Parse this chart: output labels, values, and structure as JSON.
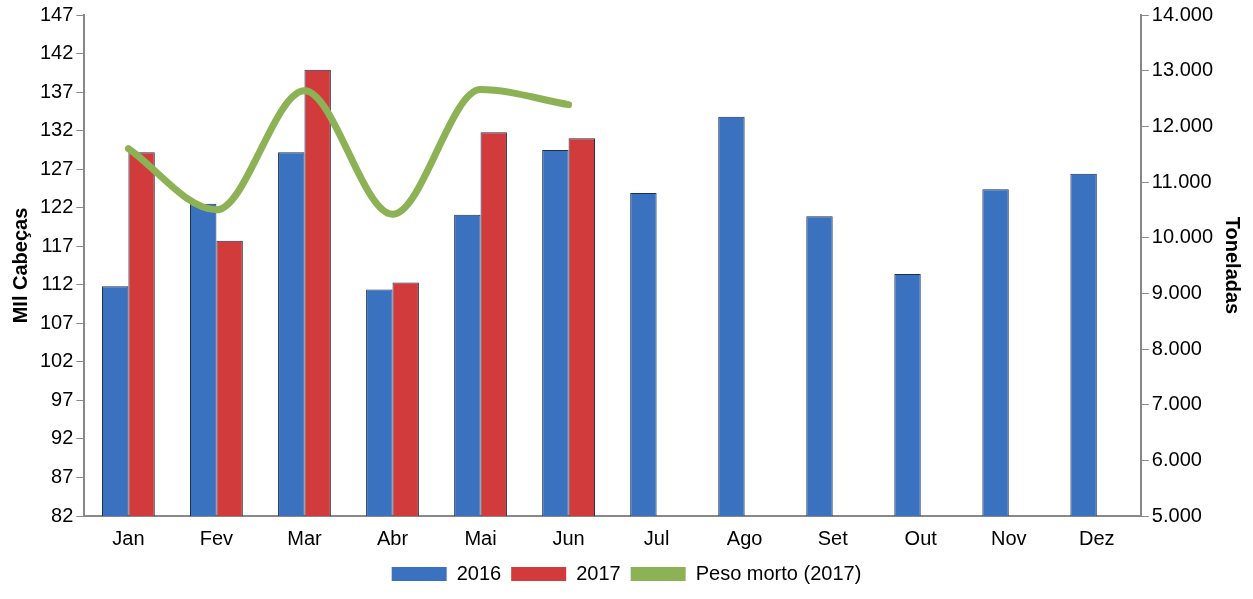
{
  "chart_data": {
    "type": "bar",
    "ylabel": "MIl Cabeças",
    "y2label": "Toneladas",
    "categories": [
      "Jan",
      "Fev",
      "Mar",
      "Abr",
      "Mai",
      "Jun",
      "Jul",
      "Ago",
      "Set",
      "Out",
      "Nov",
      "Dez"
    ],
    "series": [
      {
        "name": "2016",
        "color": "#3a72c0",
        "values": [
          111.8,
          122.5,
          129.2,
          111.4,
          121.1,
          129.5,
          123.9,
          133.8,
          120.9,
          113.4,
          124.4,
          126.4
        ]
      },
      {
        "name": "2017",
        "color": "#d13b3b",
        "values": [
          129.2,
          117.7,
          139.9,
          112.3,
          131.8,
          131.0,
          null,
          null,
          null,
          null,
          null,
          null
        ]
      },
      {
        "name": "Peso morto (2017)",
        "type": "line",
        "axis": "y2",
        "color": "#8db255",
        "values": [
          11600,
          10500,
          12640,
          10420,
          12660,
          12390,
          null,
          null,
          null,
          null,
          null,
          null
        ]
      }
    ],
    "ylim": [
      82,
      147
    ],
    "yticks": [
      82,
      87,
      92,
      97,
      102,
      107,
      112,
      117,
      122,
      127,
      132,
      137,
      142,
      147
    ],
    "y2lim": [
      5000,
      14000
    ],
    "y2ticks": [
      {
        "value": 5000,
        "label": "5.000"
      },
      {
        "value": 6000,
        "label": "6.000"
      },
      {
        "value": 7000,
        "label": "7.000"
      },
      {
        "value": 8000,
        "label": "8.000"
      },
      {
        "value": 9000,
        "label": "9.000"
      },
      {
        "value": 10000,
        "label": "10.000"
      },
      {
        "value": 11000,
        "label": "11.000"
      },
      {
        "value": 12000,
        "label": "12.000"
      },
      {
        "value": 13000,
        "label": "13.000"
      },
      {
        "value": 14000,
        "label": "14.000"
      }
    ],
    "grid": false,
    "legend": "bottom",
    "marker": "none"
  }
}
